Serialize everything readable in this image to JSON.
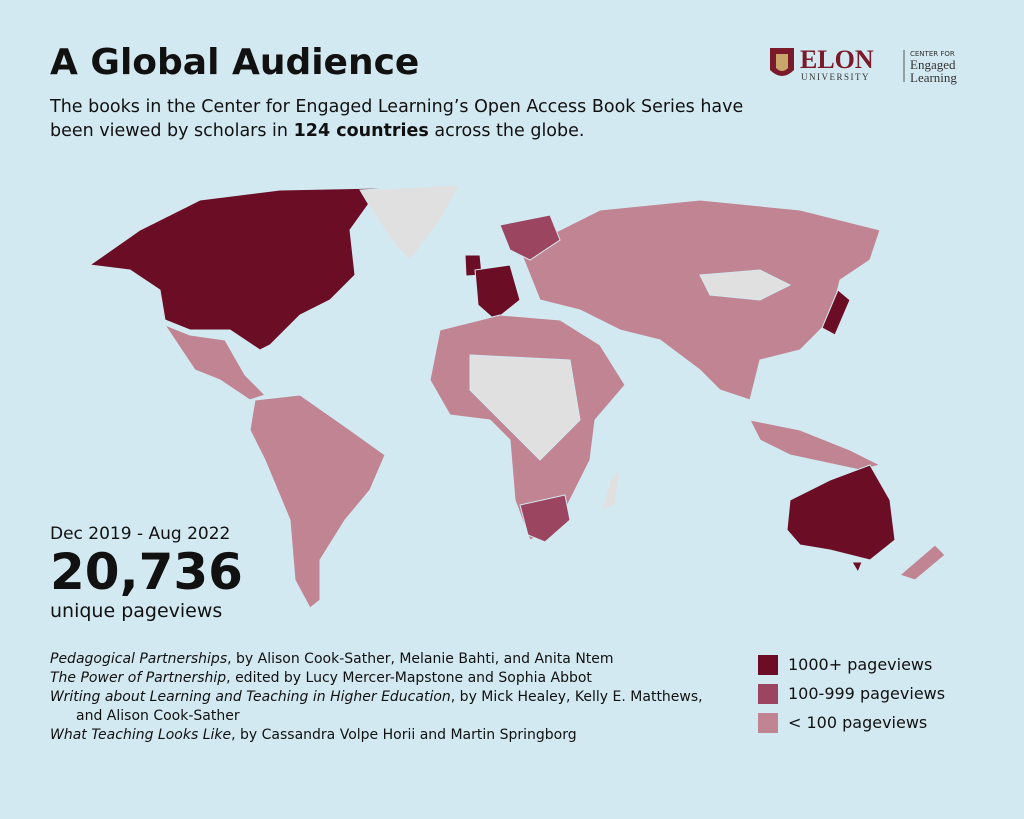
{
  "header": {
    "title": "A Global Audience",
    "subtitle_before": "The books in the Center for Engaged Learning’s Open Access Book Series have been viewed by scholars in",
    "subtitle_bold": "124 countries",
    "subtitle_after": "across the globe."
  },
  "logo": {
    "name": "ELON",
    "sub": "UNIVERSITY",
    "center_for": "CENTER FOR",
    "line1": "Engaged",
    "line2": "Learning"
  },
  "stats": {
    "period": "Dec 2019 - Aug 2022",
    "total": "20,736",
    "unit": "unique pageviews"
  },
  "books": [
    {
      "title": "Pedagogical Partnerships",
      "rest": ", by Alison Cook-Sather, Melanie Bahti, and Anita Ntem"
    },
    {
      "title": "The Power of Partnership",
      "rest": ", edited by Lucy Mercer-Mapstone and Sophia Abbot"
    },
    {
      "title": "Writing about Learning and Teaching in Higher Education",
      "rest": ", by Mick Healey, Kelly E. Matthews, and Alison Cook-Sather"
    },
    {
      "title": "What Teaching Looks Like",
      "rest": ", by Cassandra Volpe Horii and Martin Springborg"
    }
  ],
  "legend": [
    {
      "label": "1000+ pageviews",
      "color": "#6b0d24"
    },
    {
      "label": "100-999 pageviews",
      "color": "#9c4560"
    },
    {
      "label": "< 100 pageviews",
      "color": "#c08492"
    }
  ]
}
